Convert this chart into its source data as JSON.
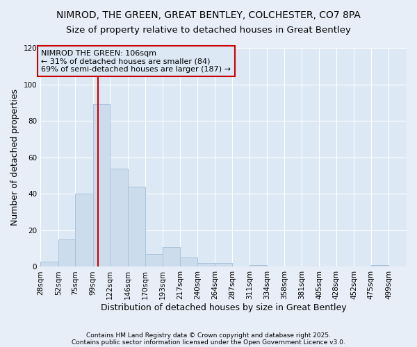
{
  "title_line1": "NIMROD, THE GREEN, GREAT BENTLEY, COLCHESTER, CO7 8PA",
  "title_line2": "Size of property relative to detached houses in Great Bentley",
  "xlabel": "Distribution of detached houses by size in Great Bentley",
  "ylabel": "Number of detached properties",
  "bar_heights": [
    3,
    15,
    40,
    89,
    54,
    44,
    7,
    11,
    5,
    2,
    2,
    0,
    1,
    0,
    0,
    0,
    0,
    0,
    0,
    1,
    0
  ],
  "bin_labels": [
    "28sqm",
    "52sqm",
    "75sqm",
    "99sqm",
    "122sqm",
    "146sqm",
    "170sqm",
    "193sqm",
    "217sqm",
    "240sqm",
    "264sqm",
    "287sqm",
    "311sqm",
    "334sqm",
    "358sqm",
    "381sqm",
    "405sqm",
    "428sqm",
    "452sqm",
    "475sqm",
    "499sqm"
  ],
  "bin_edges": [
    28,
    52,
    75,
    99,
    122,
    146,
    170,
    193,
    217,
    240,
    264,
    287,
    311,
    334,
    358,
    381,
    405,
    428,
    452,
    475,
    499,
    523
  ],
  "bar_color": "#ccdcec",
  "bar_edgecolor": "#aac4dc",
  "vline_x": 106,
  "vline_color": "#cc0000",
  "ylim": [
    0,
    120
  ],
  "yticks": [
    0,
    20,
    40,
    60,
    80,
    100,
    120
  ],
  "annotation_text": "NIMROD THE GREEN: 106sqm\n← 31% of detached houses are smaller (84)\n69% of semi-detached houses are larger (187) →",
  "annotation_box_edgecolor": "#cc0000",
  "footnote1": "Contains HM Land Registry data © Crown copyright and database right 2025.",
  "footnote2": "Contains public sector information licensed under the Open Government Licence v3.0.",
  "fig_facecolor": "#e8eef8",
  "plot_facecolor": "#dce8f4",
  "title_fontsize": 10,
  "subtitle_fontsize": 9.5,
  "axis_fontsize": 9,
  "tick_fontsize": 7.5,
  "annotation_fontsize": 8
}
